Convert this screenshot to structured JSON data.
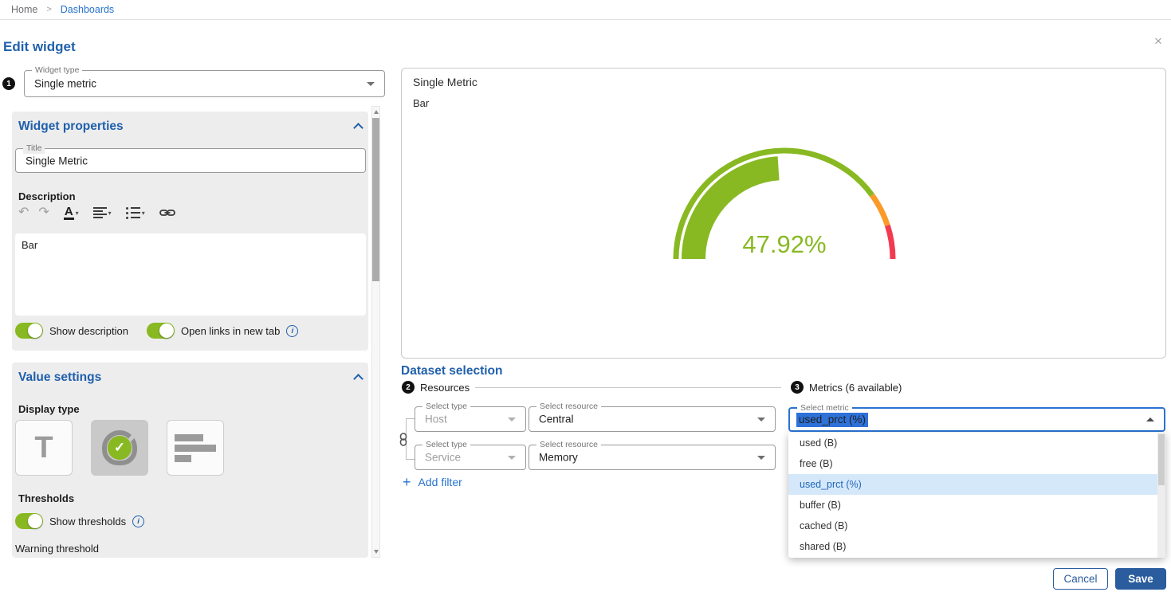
{
  "breadcrumb": {
    "items": [
      "Home",
      "Dashboards"
    ],
    "separator": ">"
  },
  "modal": {
    "title": "Edit widget",
    "close_icon": "×"
  },
  "widget_type": {
    "step": "1",
    "label": "Widget type",
    "value": "Single metric"
  },
  "properties": {
    "header": "Widget properties",
    "title_field": {
      "label": "Title",
      "value": "Single Metric"
    },
    "description_label": "Description",
    "toolbar_icons": [
      "undo",
      "redo",
      "text-color",
      "align",
      "list",
      "link"
    ],
    "description_value": "Bar",
    "toggles": {
      "show_description": {
        "label": "Show description",
        "on": true
      },
      "open_links": {
        "label": "Open links in new tab",
        "on": true
      }
    }
  },
  "value_settings": {
    "header": "Value settings",
    "display_type_label": "Display type",
    "display_options": [
      "text",
      "gauge",
      "bar-chart"
    ],
    "selected_display": "gauge",
    "thresholds_label": "Thresholds",
    "show_thresholds_label": "Show thresholds",
    "show_thresholds_on": true,
    "warning_label": "Warning threshold"
  },
  "preview": {
    "title": "Single Metric",
    "description": "Bar"
  },
  "chart_data": {
    "type": "gauge",
    "value": 47.92,
    "display": "47.92%",
    "unit": "%",
    "min": 0,
    "max": 100,
    "thresholds": {
      "warning": 80,
      "critical": 90
    },
    "colors": {
      "ok": "#88b922",
      "warning": "#fb9a28",
      "critical": "#f23b50"
    }
  },
  "dataset": {
    "header": "Dataset selection",
    "resources": {
      "step": "2",
      "label": "Resources",
      "rows": [
        {
          "type_label": "Select type",
          "type": "Host",
          "resource_label": "Select resource",
          "resource": "Central"
        },
        {
          "type_label": "Select type",
          "type": "Service",
          "resource_label": "Select resource",
          "resource": "Memory"
        }
      ],
      "add_filter": "Add filter"
    },
    "metrics": {
      "step": "3",
      "label": "Metrics (6 available)",
      "select_label": "Select metric",
      "value": "used_prct (%)",
      "options": [
        "used (B)",
        "free (B)",
        "used_prct (%)",
        "buffer (B)",
        "cached (B)",
        "shared (B)"
      ],
      "selected_index": 2
    }
  },
  "footer": {
    "cancel": "Cancel",
    "save": "Save"
  }
}
